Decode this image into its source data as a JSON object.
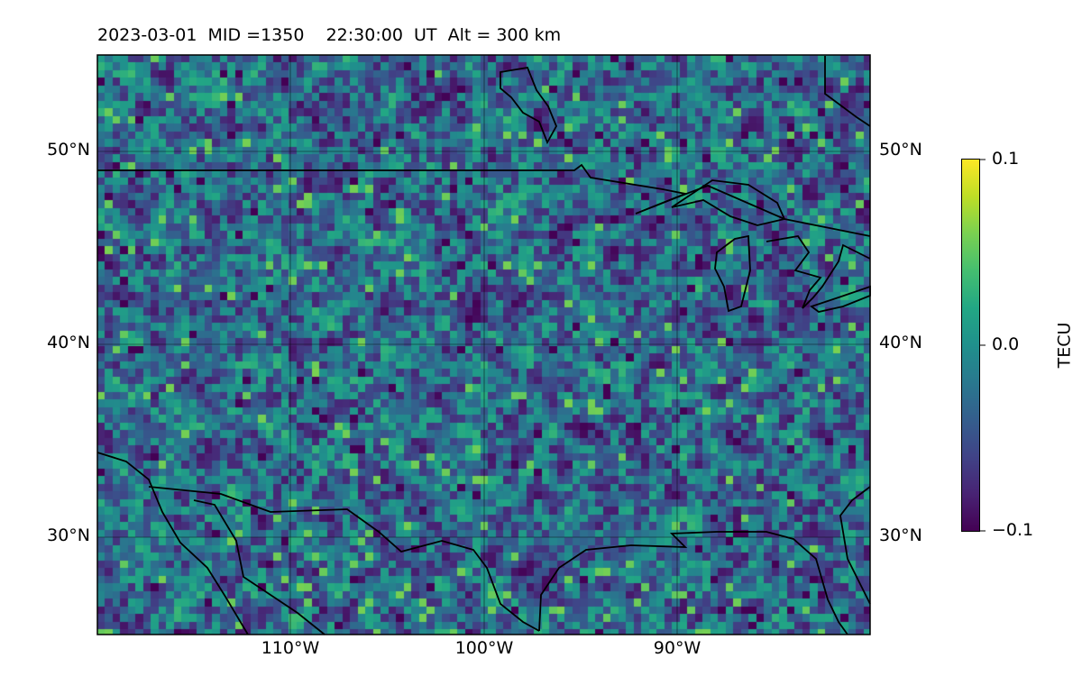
{
  "header": {
    "title": "2023-03-01  MID =1350    22:30:00  UT  Alt = 300 km"
  },
  "map": {
    "projection": "PlateCarree",
    "lon_range": [
      -120,
      -80
    ],
    "lat_range": [
      25,
      55
    ],
    "gridlines": true,
    "lat_ticks": [
      {
        "value": 50,
        "label": "50°N"
      },
      {
        "value": 40,
        "label": "40°N"
      },
      {
        "value": 30,
        "label": "30°N"
      }
    ],
    "lon_ticks": [
      {
        "value": -110,
        "label": "110°W"
      },
      {
        "value": -100,
        "label": "100°W"
      },
      {
        "value": -90,
        "label": "90°W"
      }
    ],
    "features": [
      "coastlines",
      "country borders",
      "Great Lakes"
    ],
    "colormap": "viridis",
    "field": "TEC perturbation"
  },
  "colorbar": {
    "label": "TECU",
    "ticks": [
      "0.1",
      "0.0",
      "−0.1"
    ],
    "vmin": -0.1,
    "vmax": 0.1
  },
  "colors": {
    "background": "#ffffff",
    "lines": "#000000"
  }
}
